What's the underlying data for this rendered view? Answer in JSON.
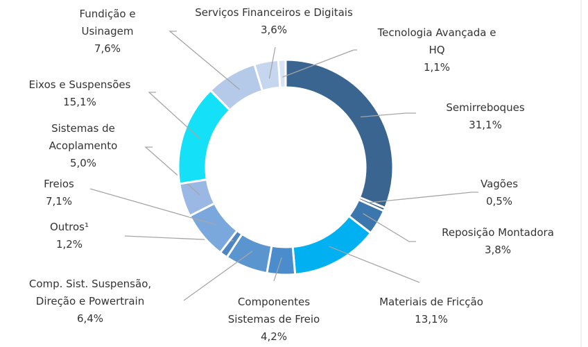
{
  "chart_data": {
    "type": "donut",
    "categories": [
      "Semirreboques",
      "Vagões",
      "Reposição Montadora",
      "Materiais de Fricção",
      "Componentes Sistemas de Freio",
      "Comp. Sist. Suspensão, Direção e Powertrain",
      "Outros¹",
      "Freios",
      "Sistemas de Acoplamento",
      "Eixos e Suspensões",
      "Fundição e Usinagem",
      "Serviços Financeiros e Digitais",
      "Tecnologia Avançada e HQ"
    ],
    "values": [
      31.1,
      0.5,
      3.8,
      13.1,
      4.2,
      6.4,
      1.2,
      7.1,
      5.0,
      15.1,
      7.6,
      3.6,
      1.1
    ],
    "value_labels": [
      "31,1%",
      "0,5%",
      "3,8%",
      "13,1%",
      "4,2%",
      "6,4%",
      "1,2%",
      "7,1%",
      "5,0%",
      "15,1%",
      "7,6%",
      "3,6%",
      "1,1%"
    ],
    "colors": [
      "#3a6590",
      "#2e5a85",
      "#3b76ad",
      "#00b0f0",
      "#4a8ccc",
      "#5b95d0",
      "#4d86c3",
      "#7aa7dc",
      "#9ab8e3",
      "#14e0f8",
      "#b4cae8",
      "#c5d6ee",
      "#d8e3f3"
    ]
  }
}
